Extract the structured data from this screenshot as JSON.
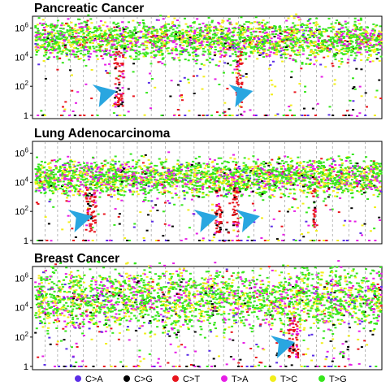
{
  "chart_data": [
    {
      "type": "scatter",
      "title": "Pancreatic Cancer",
      "ylabel": "",
      "xlabel": "",
      "yscale": "log",
      "ylim": [
        1,
        3000000
      ],
      "yticks": [
        {
          "base": "10",
          "exp": "6"
        },
        {
          "base": "10",
          "exp": "4"
        },
        {
          "base": "10",
          "exp": "2"
        },
        {
          "base": "1",
          "exp": ""
        }
      ],
      "band": {
        "low": 20000,
        "high": 1500000
      },
      "arrows": [
        0.19,
        0.58
      ],
      "columns": [
        0.23,
        0.24,
        0.25,
        0.58,
        0.59
      ],
      "seed": 11
    },
    {
      "type": "scatter",
      "title": "Lung Adenocarcinoma",
      "ylabel": "",
      "xlabel": "",
      "yscale": "log",
      "ylim": [
        1,
        3000000
      ],
      "yticks": [
        {
          "base": "10",
          "exp": "6"
        },
        {
          "base": "10",
          "exp": "4"
        },
        {
          "base": "10",
          "exp": "2"
        },
        {
          "base": "1",
          "exp": ""
        }
      ],
      "band": {
        "low": 3000,
        "high": 200000
      },
      "arrows": [
        0.12,
        0.48,
        0.6
      ],
      "columns": [
        0.15,
        0.16,
        0.17,
        0.52,
        0.53,
        0.57,
        0.58,
        0.8
      ],
      "seed": 23
    },
    {
      "type": "scatter",
      "title": "Breast Cancer",
      "ylabel": "",
      "xlabel": "",
      "yscale": "log",
      "ylim": [
        1,
        3000000
      ],
      "yticks": [
        {
          "base": "10",
          "exp": "6"
        },
        {
          "base": "10",
          "exp": "4"
        },
        {
          "base": "10",
          "exp": "2"
        },
        {
          "base": "1",
          "exp": ""
        }
      ],
      "band": {
        "low": 1500,
        "high": 1200000
      },
      "arrows": [
        0.7
      ],
      "columns": [
        0.73,
        0.74,
        0.75
      ],
      "seed": 37
    }
  ],
  "legend": [
    {
      "label": "C>A",
      "color": "#5b2ee6"
    },
    {
      "label": "C>G",
      "color": "#000000"
    },
    {
      "label": "C>T",
      "color": "#e8141c"
    },
    {
      "label": "T>A",
      "color": "#e61ee6"
    },
    {
      "label": "T>C",
      "color": "#f2ee1a"
    },
    {
      "label": "T>G",
      "color": "#36e61c"
    }
  ],
  "arrow_color": "#29a6e0"
}
